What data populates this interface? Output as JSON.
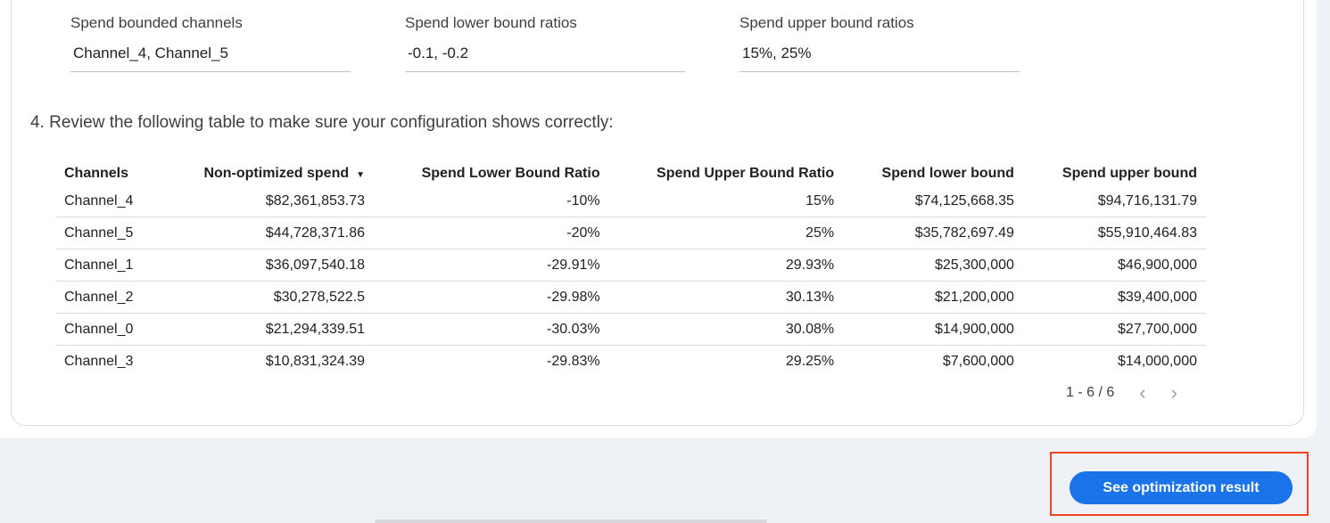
{
  "fields": [
    {
      "label": "Spend bounded channels",
      "value": "Channel_4, Channel_5"
    },
    {
      "label": "Spend lower bound ratios",
      "value": "-0.1, -0.2"
    },
    {
      "label": "Spend upper bound ratios",
      "value": "15%, 25%"
    }
  ],
  "review_text": "4. Review the following table to make sure your configuration shows correctly:",
  "table": {
    "headers": [
      "Channels",
      "Non-optimized spend",
      "Spend Lower Bound Ratio",
      "Spend Upper Bound Ratio",
      "Spend lower bound",
      "Spend upper bound"
    ],
    "sort_icon": "sort-descending-icon",
    "rows": [
      [
        "Channel_4",
        "$82,361,853.73",
        "-10%",
        "15%",
        "$74,125,668.35",
        "$94,716,131.79"
      ],
      [
        "Channel_5",
        "$44,728,371.86",
        "-20%",
        "25%",
        "$35,782,697.49",
        "$55,910,464.83"
      ],
      [
        "Channel_1",
        "$36,097,540.18",
        "-29.91%",
        "29.93%",
        "$25,300,000",
        "$46,900,000"
      ],
      [
        "Channel_2",
        "$30,278,522.5",
        "-29.98%",
        "30.13%",
        "$21,200,000",
        "$39,400,000"
      ],
      [
        "Channel_0",
        "$21,294,339.51",
        "-30.03%",
        "30.08%",
        "$14,900,000",
        "$27,700,000"
      ],
      [
        "Channel_3",
        "$10,831,324.39",
        "-29.83%",
        "29.25%",
        "$7,600,000",
        "$14,000,000"
      ]
    ]
  },
  "pagination": {
    "range": "1 - 6 / 6"
  },
  "button": {
    "label": "See optimization result"
  },
  "colors": {
    "accent": "#1a73e8",
    "highlight": "#f0441f",
    "background": "#eef2f7"
  }
}
